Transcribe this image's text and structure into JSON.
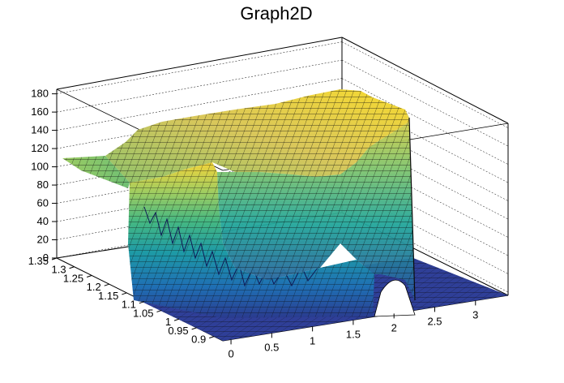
{
  "chart_data": {
    "type": "surface",
    "title": "Graph2D",
    "xlabel": "",
    "ylabel": "",
    "zlabel": "",
    "x_range": [
      -0.1,
      3.4
    ],
    "y_range": [
      0.875,
      1.35
    ],
    "z_range": [
      0,
      185
    ],
    "x_ticks": [
      "0",
      "0.5",
      "1",
      "1.5",
      "2",
      "2.5",
      "3"
    ],
    "y_ticks": [
      "0.9",
      "0.95",
      "1",
      "1.05",
      "1.1",
      "1.15",
      "1.2",
      "1.25",
      "1.3",
      "1.35"
    ],
    "z_ticks": [
      "0",
      "20",
      "40",
      "60",
      "80",
      "100",
      "120",
      "140",
      "160",
      "180"
    ],
    "colormap": "viridis-like (blue to yellow)",
    "grid": true,
    "surface_description_points": [
      {
        "x": -0.1,
        "y": 1.35,
        "z": 105
      },
      {
        "x": 0.7,
        "y": 1.35,
        "z": 105
      },
      {
        "x": 1.0,
        "y": 1.3,
        "z": 135
      },
      {
        "x": 1.5,
        "y": 1.3,
        "z": 150
      },
      {
        "x": 2.0,
        "y": 1.3,
        "z": 160
      },
      {
        "x": 2.1,
        "y": 1.15,
        "z": 150
      },
      {
        "x": 2.1,
        "y": 0.875,
        "z": 0
      },
      {
        "x": 0.0,
        "y": 0.875,
        "z": 15
      },
      {
        "x": 1.2,
        "y": 0.95,
        "z": 12
      },
      {
        "x": 3.4,
        "y": 0.875,
        "z": 0
      }
    ]
  }
}
